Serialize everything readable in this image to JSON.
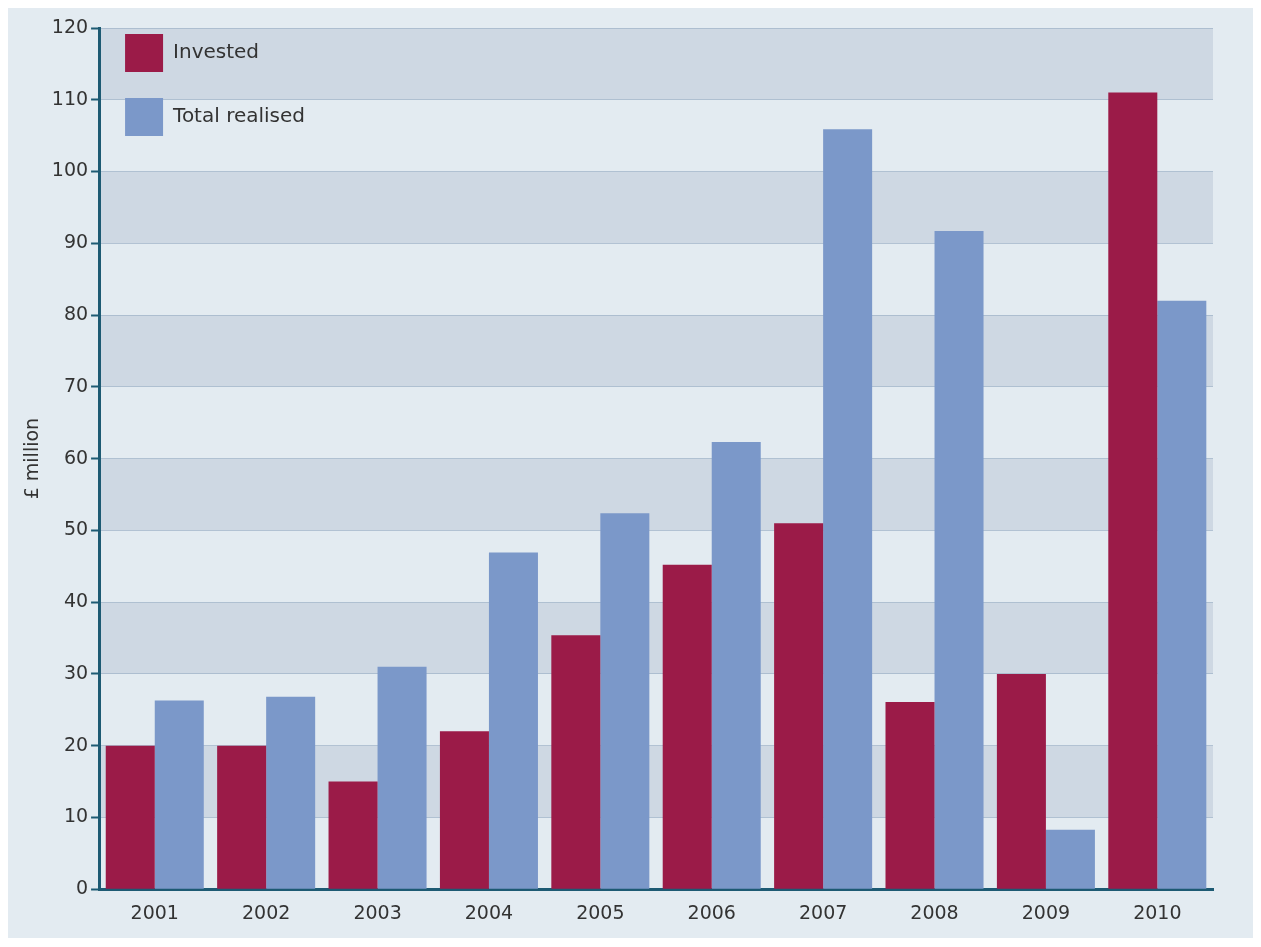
{
  "chart_data": {
    "type": "bar",
    "ylabel": "£ million",
    "categories": [
      "2001",
      "2002",
      "2003",
      "2004",
      "2005",
      "2006",
      "2007",
      "2008",
      "2009",
      "2010"
    ],
    "series": [
      {
        "name": "Invested",
        "color": "#9b1b48",
        "values": [
          20,
          20,
          15,
          22,
          35.4,
          45.2,
          51,
          26.1,
          30,
          111
        ]
      },
      {
        "name": "Total realised",
        "color": "#7b98c9",
        "values": [
          26.3,
          26.8,
          31,
          46.9,
          52.4,
          62.3,
          105.9,
          91.7,
          8.3,
          82
        ]
      }
    ],
    "ylim": [
      0,
      120
    ],
    "yticks": [
      0,
      10,
      20,
      30,
      40,
      50,
      60,
      70,
      80,
      90,
      100,
      110,
      120
    ],
    "grid": "y",
    "legend": "top left"
  }
}
